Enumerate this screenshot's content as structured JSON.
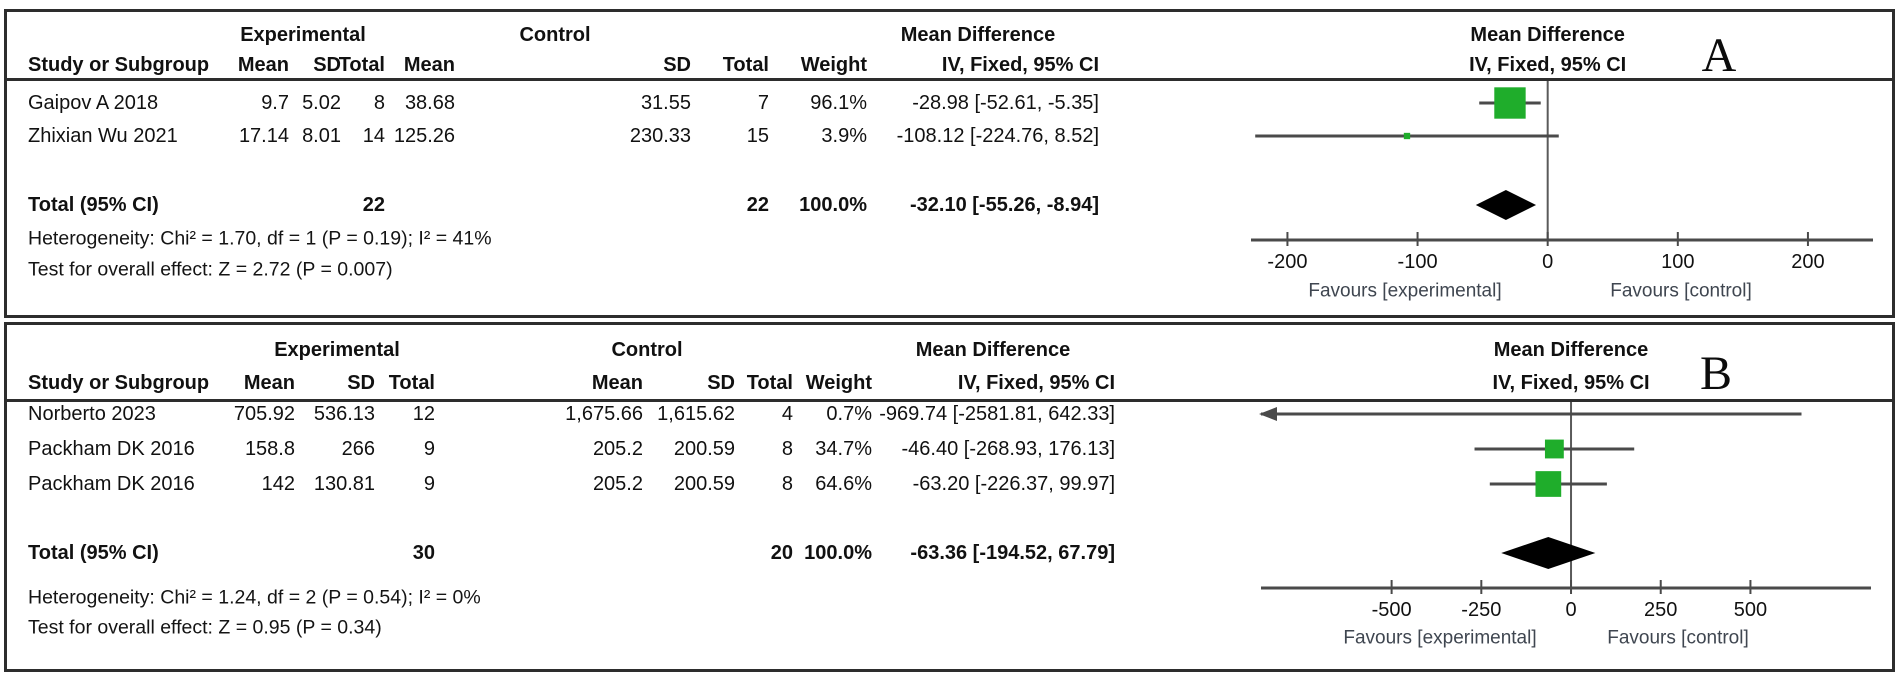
{
  "chart_data": [
    {
      "type": "forest",
      "panel_label": "A",
      "effect_measure": "Mean Difference",
      "method": "IV, Fixed, 95% CI",
      "groups": [
        "Experimental",
        "Control"
      ],
      "columns": [
        "Study or Subgroup",
        "Mean",
        "SD",
        "Total",
        "Mean",
        "SD",
        "Total",
        "Weight",
        "IV, Fixed, 95% CI"
      ],
      "studies": [
        {
          "study": "Gaipov A 2018",
          "exp_mean": "9.7",
          "exp_sd": "5.02",
          "exp_total": "8",
          "ctrl_mean": "38.68",
          "ctrl_sd": "31.55",
          "ctrl_total": "7",
          "weight": "96.1%",
          "weight_pct": 96.1,
          "ci_text": "-28.98 [-52.61, -5.35]",
          "md": -28.98,
          "ci_low": -52.61,
          "ci_high": -5.35
        },
        {
          "study": "Zhixian Wu 2021",
          "exp_mean": "17.14",
          "exp_sd": "8.01",
          "exp_total": "14",
          "ctrl_mean": "125.26",
          "ctrl_sd": "230.33",
          "ctrl_total": "15",
          "weight": "3.9%",
          "weight_pct": 3.9,
          "ci_text": "-108.12 [-224.76, 8.52]",
          "md": -108.12,
          "ci_low": -224.76,
          "ci_high": 8.52
        }
      ],
      "total": {
        "label": "Total (95% CI)",
        "exp_total": "22",
        "ctrl_total": "22",
        "weight": "100.0%",
        "ci_text": "-32.10 [-55.26, -8.94]",
        "md": -32.1,
        "ci_low": -55.26,
        "ci_high": -8.94
      },
      "heterogeneity": "Heterogeneity: Chi² = 1.70, df = 1 (P = 0.19); I² = 41%",
      "overall_effect": "Test for overall effect: Z = 2.72 (P = 0.007)",
      "x_ticks": [
        -200,
        -100,
        0,
        100,
        200
      ],
      "x_range": [
        -228,
        250
      ],
      "favours_left": "Favours [experimental]",
      "favours_right": "Favours [control]"
    },
    {
      "type": "forest",
      "panel_label": "B",
      "effect_measure": "Mean Difference",
      "method": "IV, Fixed, 95% CI",
      "groups": [
        "Experimental",
        "Control"
      ],
      "columns": [
        "Study or Subgroup",
        "Mean",
        "SD",
        "Total",
        "Mean",
        "SD",
        "Total",
        "Weight",
        "IV, Fixed, 95% CI"
      ],
      "studies": [
        {
          "study": "Norberto 2023",
          "exp_mean": "705.92",
          "exp_sd": "536.13",
          "exp_total": "12",
          "ctrl_mean": "1,675.66",
          "ctrl_sd": "1,615.62",
          "ctrl_total": "4",
          "weight": "0.7%",
          "weight_pct": 0.7,
          "ci_text": "-969.74 [-2581.81, 642.33]",
          "md": -969.74,
          "ci_low": -2581.81,
          "ci_high": 642.33
        },
        {
          "study": "Packham DK 2016",
          "exp_mean": "158.8",
          "exp_sd": "266",
          "exp_total": "9",
          "ctrl_mean": "205.2",
          "ctrl_sd": "200.59",
          "ctrl_total": "8",
          "weight": "34.7%",
          "weight_pct": 34.7,
          "ci_text": "-46.40 [-268.93, 176.13]",
          "md": -46.4,
          "ci_low": -268.93,
          "ci_high": 176.13
        },
        {
          "study": "Packham DK 2016",
          "exp_mean": "142",
          "exp_sd": "130.81",
          "exp_total": "9",
          "ctrl_mean": "205.2",
          "ctrl_sd": "200.59",
          "ctrl_total": "8",
          "weight": "64.6%",
          "weight_pct": 64.6,
          "ci_text": "-63.20 [-226.37, 99.97]",
          "md": -63.2,
          "ci_low": -226.37,
          "ci_high": 99.97
        }
      ],
      "total": {
        "label": "Total (95% CI)",
        "exp_total": "30",
        "ctrl_total": "20",
        "weight": "100.0%",
        "ci_text": "-63.36 [-194.52, 67.79]",
        "md": -63.36,
        "ci_low": -194.52,
        "ci_high": 67.79
      },
      "heterogeneity": "Heterogeneity: Chi² = 1.24, df = 2 (P = 0.54); I² = 0%",
      "overall_effect": "Test for overall effect: Z = 0.95 (P = 0.34)",
      "x_ticks": [
        -500,
        -250,
        0,
        250,
        500
      ],
      "x_range": [
        -864,
        836
      ],
      "favours_left": "Favours [experimental]",
      "favours_right": "Favours [control]"
    }
  ],
  "colors": {
    "square_green": "#1fad2b",
    "line_gray": "#4a4a4a",
    "diamond_black": "#000000",
    "border": "#2d2d2d"
  }
}
